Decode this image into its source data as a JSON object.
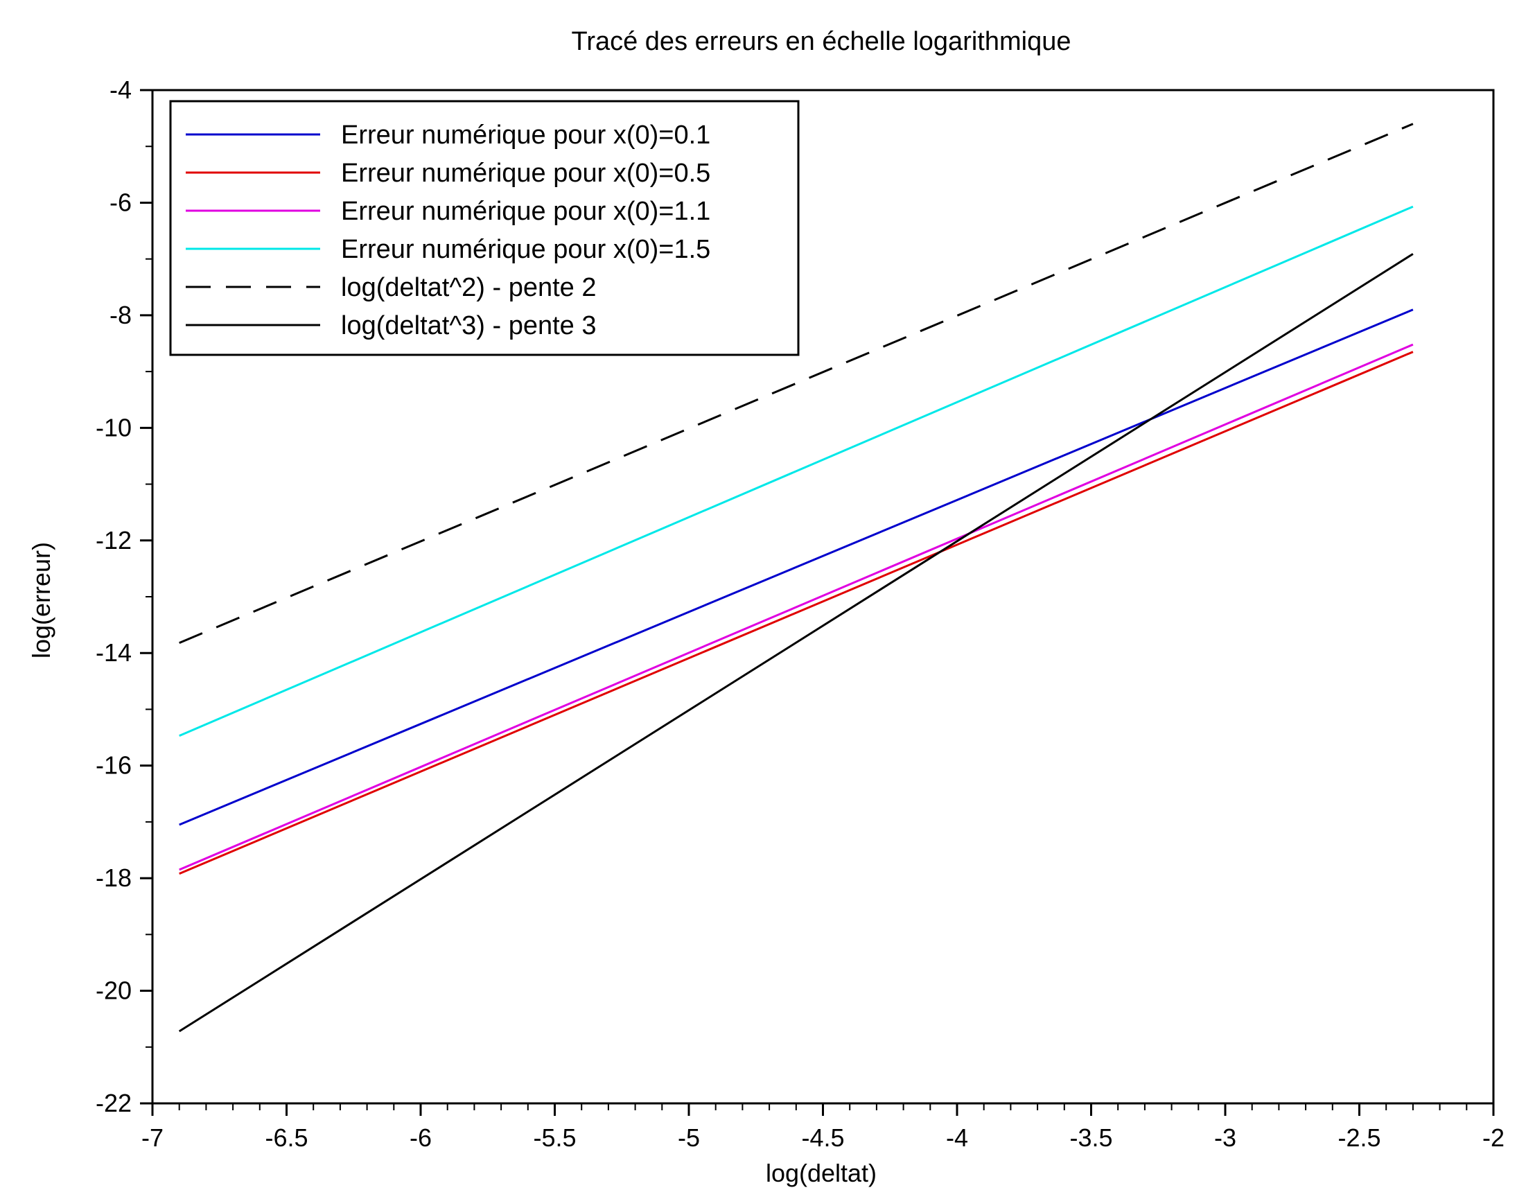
{
  "chart_data": {
    "type": "line",
    "title": "Tracé des erreurs en échelle logarithmique",
    "xlabel": "log(deltat)",
    "ylabel": "log(erreur)",
    "xlim": [
      -7,
      -2
    ],
    "ylim": [
      -22,
      -4
    ],
    "xticks": [
      "-7",
      "-6.5",
      "-6",
      "-5.5",
      "-5",
      "-4.5",
      "-4",
      "-3.5",
      "-3",
      "-2.5",
      "-2"
    ],
    "yticks": [
      "-22",
      "-20",
      "-18",
      "-16",
      "-14",
      "-12",
      "-10",
      "-8",
      "-6",
      "-4"
    ],
    "grid": false,
    "legend_position": "top-left",
    "series": [
      {
        "name": "Erreur numérique pour x(0)=0.1",
        "color": "#0000cc",
        "dash": "solid",
        "x": [
          -6.9,
          -2.3
        ],
        "y": [
          -17.05,
          -7.9
        ]
      },
      {
        "name": "Erreur numérique pour x(0)=0.5",
        "color": "#e00000",
        "dash": "solid",
        "x": [
          -6.9,
          -2.3
        ],
        "y": [
          -17.92,
          -8.65
        ]
      },
      {
        "name": "Erreur numérique pour x(0)=1.1",
        "color": "#e000e0",
        "dash": "solid",
        "x": [
          -6.9,
          -2.3
        ],
        "y": [
          -17.85,
          -8.52
        ]
      },
      {
        "name": "Erreur numérique pour x(0)=1.5",
        "color": "#00e8e8",
        "dash": "solid",
        "x": [
          -6.9,
          -2.3
        ],
        "y": [
          -15.47,
          -6.07
        ]
      },
      {
        "name": "log(deltat^2) - pente 2",
        "color": "#000000",
        "dash": "dashed",
        "x": [
          -6.9,
          -2.3
        ],
        "y": [
          -13.82,
          -4.6
        ]
      },
      {
        "name": "log(deltat^3) - pente 3",
        "color": "#000000",
        "dash": "solid",
        "x": [
          -6.9,
          -2.3
        ],
        "y": [
          -20.72,
          -6.91
        ]
      }
    ]
  }
}
